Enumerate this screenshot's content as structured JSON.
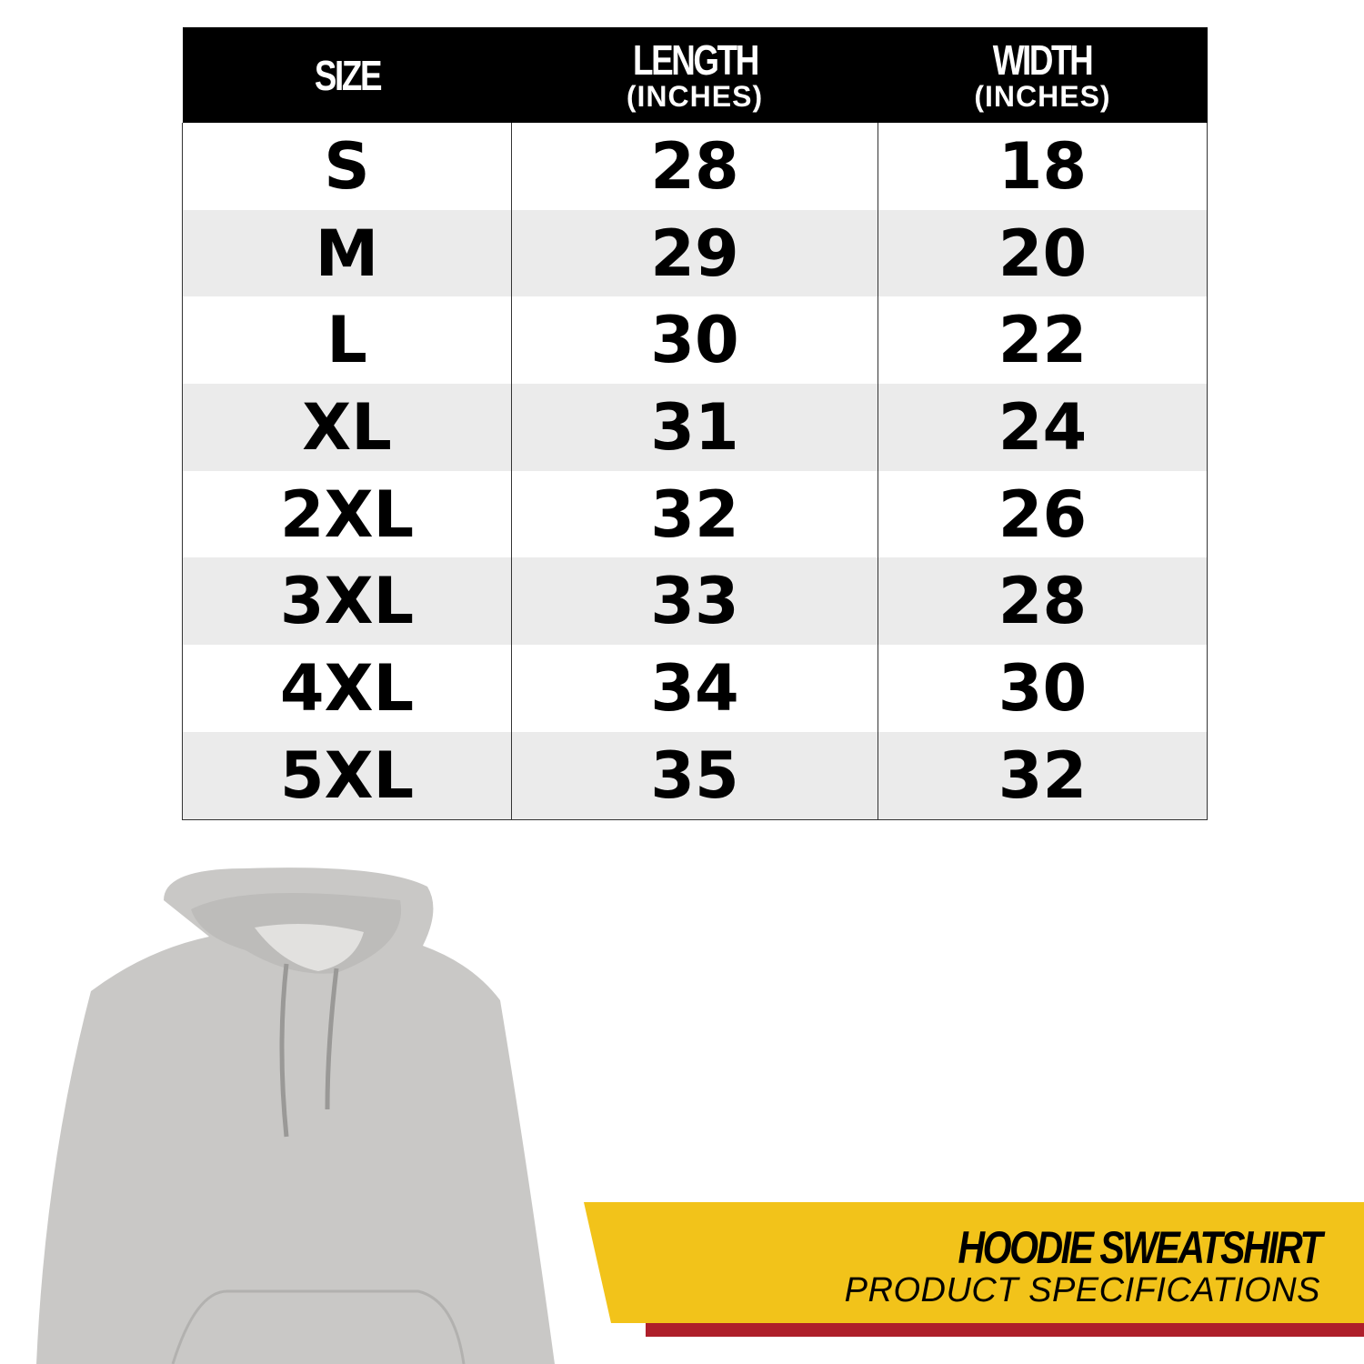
{
  "table": {
    "headers": [
      {
        "main": "SIZE",
        "sub": ""
      },
      {
        "main": "LENGTH",
        "sub": "(INCHES)"
      },
      {
        "main": "WIDTH",
        "sub": "(INCHES)"
      }
    ],
    "rows": [
      [
        "S",
        "28",
        "18"
      ],
      [
        "M",
        "29",
        "20"
      ],
      [
        "L",
        "30",
        "22"
      ],
      [
        "XL",
        "31",
        "24"
      ],
      [
        "2XL",
        "32",
        "26"
      ],
      [
        "3XL",
        "33",
        "28"
      ],
      [
        "4XL",
        "34",
        "30"
      ],
      [
        "5XL",
        "35",
        "32"
      ]
    ]
  },
  "banner": {
    "title": "HOODIE SWEATSHIRT",
    "subtitle": "PRODUCT SPECIFICATIONS",
    "colors": {
      "yellow": "#F2C31A",
      "red": "#AE1F2A"
    }
  },
  "product_image": {
    "icon": "gray-hoodie-image",
    "color": "#c9c8c6"
  }
}
